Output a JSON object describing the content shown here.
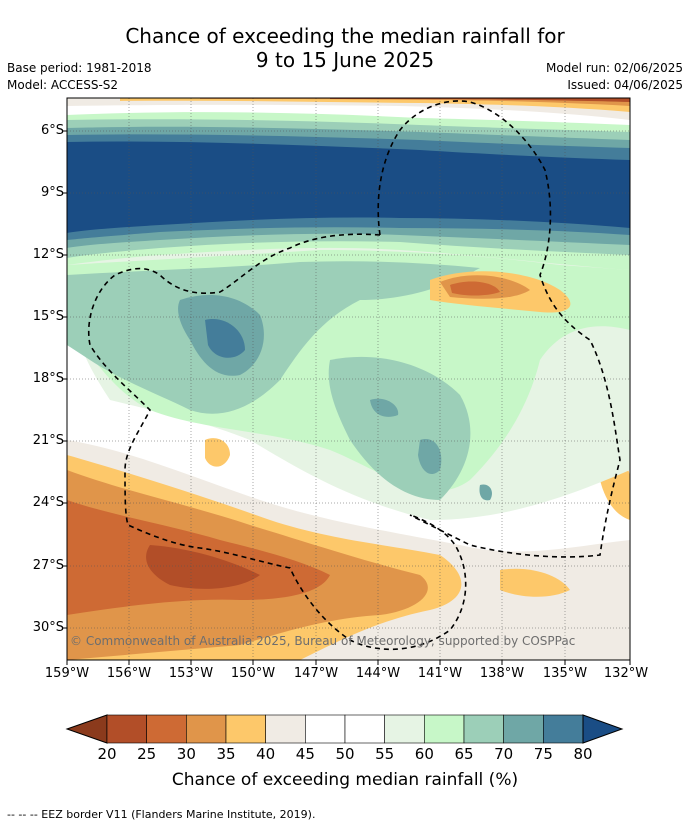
{
  "header": {
    "title_line1": "Chance of exceeding the median rainfall for",
    "title_line2": "9 to 15 June 2025",
    "base_period": "Base period: 1981-2018",
    "model": "Model: ACCESS-S2",
    "model_run": "Model run: 02/06/2025",
    "issued": "Issued: 04/06/2025"
  },
  "map": {
    "lat_labels": [
      "6°S",
      "9°S",
      "12°S",
      "15°S",
      "18°S",
      "21°S",
      "24°S",
      "27°S",
      "30°S"
    ],
    "lon_labels": [
      "159°W",
      "156°W",
      "153°W",
      "150°W",
      "147°W",
      "144°W",
      "141°W",
      "138°W",
      "135°W",
      "132°W"
    ],
    "copyright": "© Commonwealth of Australia 2025, Bureau of Meteorology, supported by COSPPac"
  },
  "colorbar": {
    "ticks": [
      "20",
      "25",
      "30",
      "35",
      "40",
      "45",
      "50",
      "55",
      "60",
      "65",
      "70",
      "75",
      "80"
    ],
    "colors": [
      "#8b3a1c",
      "#b24e28",
      "#ce6a34",
      "#e0954a",
      "#fdc86a",
      "#f0ebe4",
      "#ffffff",
      "#ffffff",
      "#e6f4e4",
      "#c7f7c8",
      "#9ccfb8",
      "#6fa7a6",
      "#447d9a",
      "#1a4d85"
    ],
    "label": "Chance of exceeding median rainfall (%)"
  },
  "footer": {
    "eez_note": "--  --  -- EEZ border V11 (Flanders Marine Institute, 2019)."
  }
}
